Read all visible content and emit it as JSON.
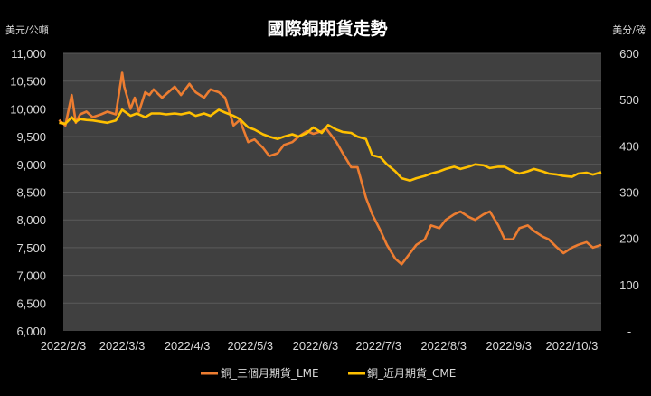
{
  "chart_data": {
    "type": "line",
    "title": "國際銅期貨走勢",
    "left_unit": "美元/公噸",
    "right_unit": "美分/磅",
    "x_ticks": [
      "2022/2/3",
      "2022/3/3",
      "2022/4/3",
      "2022/5/3",
      "2022/6/3",
      "2022/7/3",
      "2022/8/3",
      "2022/9/3",
      "2022/10/3"
    ],
    "y_left": {
      "min": 6000,
      "max": 11000,
      "ticks": [
        "6,000",
        "6,500",
        "7,000",
        "7,500",
        "8,000",
        "8,500",
        "9,000",
        "9,500",
        "10,000",
        "10,500",
        "11,000"
      ]
    },
    "y_right": {
      "min": 0,
      "max": 600,
      "ticks": [
        "-",
        "100",
        "200",
        "300",
        "400",
        "500",
        "600"
      ]
    },
    "grid": true,
    "legend_position": "bottom",
    "background_color": "#000000",
    "plot_background_color": "#404040",
    "series": [
      {
        "name": "銅_三個月期貨_LME",
        "axis": "left",
        "color": "#ed7d31",
        "x": [
          "2022/2/1",
          "2022/2/4",
          "2022/2/7",
          "2022/2/9",
          "2022/2/11",
          "2022/2/14",
          "2022/2/17",
          "2022/2/21",
          "2022/2/24",
          "2022/2/28",
          "2022/3/3",
          "2022/3/4",
          "2022/3/7",
          "2022/3/9",
          "2022/3/11",
          "2022/3/14",
          "2022/3/16",
          "2022/3/18",
          "2022/3/22",
          "2022/3/25",
          "2022/3/28",
          "2022/3/31",
          "2022/4/4",
          "2022/4/7",
          "2022/4/11",
          "2022/4/14",
          "2022/4/18",
          "2022/4/21",
          "2022/4/25",
          "2022/4/28",
          "2022/5/2",
          "2022/5/5",
          "2022/5/9",
          "2022/5/12",
          "2022/5/16",
          "2022/5/19",
          "2022/5/23",
          "2022/5/26",
          "2022/5/30",
          "2022/6/2",
          "2022/6/6",
          "2022/6/8",
          "2022/6/13",
          "2022/6/16",
          "2022/6/20",
          "2022/6/23",
          "2022/6/27",
          "2022/6/30",
          "2022/7/4",
          "2022/7/7",
          "2022/7/11",
          "2022/7/14",
          "2022/7/18",
          "2022/7/21",
          "2022/7/25",
          "2022/7/28",
          "2022/8/1",
          "2022/8/4",
          "2022/8/8",
          "2022/8/11",
          "2022/8/15",
          "2022/8/18",
          "2022/8/22",
          "2022/8/25",
          "2022/8/29",
          "2022/9/1",
          "2022/9/5",
          "2022/9/8",
          "2022/9/12",
          "2022/9/15",
          "2022/9/19",
          "2022/9/22",
          "2022/9/26",
          "2022/9/29",
          "2022/10/3",
          "2022/10/6",
          "2022/10/10",
          "2022/10/13",
          "2022/10/17"
        ],
        "y": [
          9800,
          9700,
          10250,
          9750,
          9900,
          9950,
          9850,
          9900,
          9950,
          9900,
          10650,
          10400,
          10000,
          10200,
          9950,
          10300,
          10250,
          10350,
          10200,
          10300,
          10400,
          10250,
          10450,
          10300,
          10200,
          10350,
          10300,
          10200,
          9700,
          9800,
          9400,
          9450,
          9300,
          9150,
          9200,
          9350,
          9400,
          9500,
          9600,
          9550,
          9600,
          9650,
          9400,
          9200,
          8950,
          8950,
          8400,
          8100,
          7800,
          7550,
          7300,
          7200,
          7400,
          7550,
          7650,
          7900,
          7850,
          8000,
          8100,
          8150,
          8050,
          8000,
          8100,
          8150,
          7900,
          7650,
          7650,
          7850,
          7900,
          7800,
          7700,
          7650,
          7500,
          7400,
          7500,
          7550,
          7600,
          7500,
          7550
        ]
      },
      {
        "name": "銅_近月期貨_CME",
        "axis": "right",
        "color": "#ffc000",
        "x": [
          "2022/2/1",
          "2022/2/4",
          "2022/2/7",
          "2022/2/9",
          "2022/2/11",
          "2022/2/14",
          "2022/2/17",
          "2022/2/21",
          "2022/2/24",
          "2022/2/28",
          "2022/3/3",
          "2022/3/7",
          "2022/3/10",
          "2022/3/14",
          "2022/3/17",
          "2022/3/21",
          "2022/3/24",
          "2022/3/28",
          "2022/3/31",
          "2022/4/4",
          "2022/4/7",
          "2022/4/11",
          "2022/4/14",
          "2022/4/18",
          "2022/4/21",
          "2022/4/25",
          "2022/4/28",
          "2022/5/2",
          "2022/5/5",
          "2022/5/9",
          "2022/5/12",
          "2022/5/16",
          "2022/5/19",
          "2022/5/23",
          "2022/5/26",
          "2022/5/30",
          "2022/6/2",
          "2022/6/6",
          "2022/6/9",
          "2022/6/13",
          "2022/6/16",
          "2022/6/20",
          "2022/6/23",
          "2022/6/27",
          "2022/6/30",
          "2022/7/4",
          "2022/7/7",
          "2022/7/11",
          "2022/7/14",
          "2022/7/18",
          "2022/7/21",
          "2022/7/25",
          "2022/7/28",
          "2022/8/1",
          "2022/8/4",
          "2022/8/8",
          "2022/8/11",
          "2022/8/15",
          "2022/8/18",
          "2022/8/22",
          "2022/8/25",
          "2022/8/29",
          "2022/9/1",
          "2022/9/5",
          "2022/9/8",
          "2022/9/12",
          "2022/9/15",
          "2022/9/19",
          "2022/9/22",
          "2022/9/26",
          "2022/9/29",
          "2022/10/3",
          "2022/10/6",
          "2022/10/10",
          "2022/10/13",
          "2022/10/17"
        ],
        "y": [
          450,
          448,
          462,
          452,
          458,
          456,
          455,
          452,
          450,
          455,
          478,
          465,
          470,
          462,
          470,
          470,
          468,
          470,
          468,
          472,
          465,
          470,
          465,
          478,
          472,
          465,
          458,
          440,
          435,
          425,
          420,
          415,
          420,
          425,
          420,
          428,
          440,
          428,
          445,
          435,
          430,
          428,
          420,
          415,
          380,
          375,
          360,
          345,
          330,
          325,
          330,
          335,
          340,
          345,
          350,
          355,
          350,
          355,
          360,
          358,
          352,
          355,
          355,
          345,
          340,
          345,
          350,
          345,
          340,
          338,
          335,
          333,
          340,
          342,
          338,
          343
        ]
      }
    ]
  }
}
